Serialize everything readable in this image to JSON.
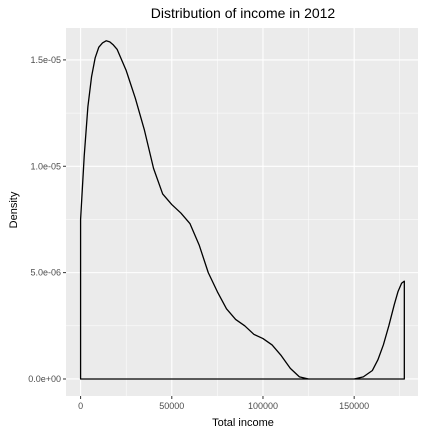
{
  "chart_data": {
    "type": "area",
    "title": "Distribution of income in 2012",
    "xlabel": "Total income",
    "ylabel": "Density",
    "xlim": [
      -8000,
      185000
    ],
    "ylim": [
      -8e-07,
      1.65e-05
    ],
    "x_ticks": [
      0,
      50000,
      100000,
      150000
    ],
    "x_tick_labels": [
      "0",
      "50000",
      "100000",
      "150000"
    ],
    "x_minor_ticks": [
      25000,
      75000,
      125000,
      175000
    ],
    "y_ticks": [
      0,
      5e-06,
      1e-05,
      1.5e-05
    ],
    "y_tick_labels": [
      "0.0e+00",
      "5.0e-06",
      "1.0e-05",
      "1.5e-05"
    ],
    "y_minor_ticks": [
      2.5e-06,
      7.5e-06,
      1.25e-05
    ],
    "grid": true,
    "colors": {
      "panel": "#ebebeb",
      "grid": "#ffffff",
      "line": "#000000"
    },
    "series": [
      {
        "x": [
          0,
          0,
          2000,
          4000,
          6000,
          8000,
          10000,
          12000,
          14000,
          16000,
          18000,
          20000,
          25000,
          30000,
          35000,
          40000,
          45000,
          50000,
          55000,
          60000,
          65000,
          70000,
          75000,
          80000,
          85000,
          90000,
          95000,
          100000,
          105000,
          110000,
          115000,
          120000,
          125000,
          130000,
          140000,
          150000,
          155000,
          160000,
          163000,
          166000,
          169000,
          172000,
          174000,
          176000,
          177500,
          177500
        ],
        "y": [
          0,
          7.5e-06,
          1.05e-05,
          1.28e-05,
          1.42e-05,
          1.51e-05,
          1.56e-05,
          1.58e-05,
          1.59e-05,
          1.585e-05,
          1.57e-05,
          1.55e-05,
          1.45e-05,
          1.32e-05,
          1.17e-05,
          9.9e-06,
          8.7e-06,
          8.2e-06,
          7.8e-06,
          7.3e-06,
          6.3e-06,
          5e-06,
          4.1e-06,
          3.3e-06,
          2.8e-06,
          2.5e-06,
          2.1e-06,
          1.9e-06,
          1.6e-06,
          1.1e-06,
          5e-07,
          1e-07,
          0,
          0,
          0,
          0,
          1e-07,
          4e-07,
          9e-07,
          1.6e-06,
          2.5e-06,
          3.5e-06,
          4.1e-06,
          4.5e-06,
          4.6e-06,
          0
        ]
      }
    ]
  }
}
